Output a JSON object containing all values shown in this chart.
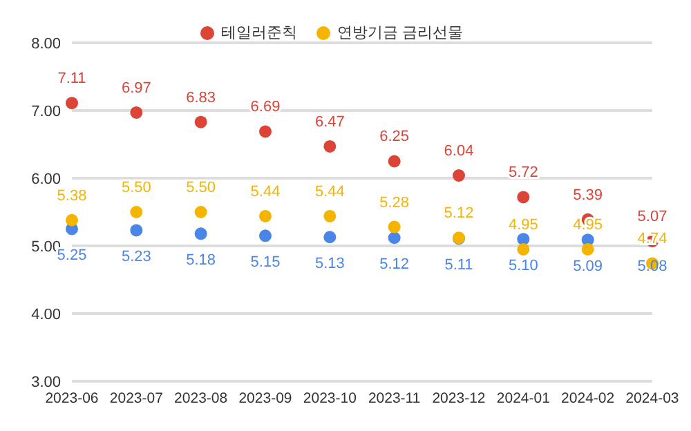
{
  "chart_data": {
    "type": "scatter",
    "categories": [
      "2023-06",
      "2023-07",
      "2023-08",
      "2023-09",
      "2023-10",
      "2023-11",
      "2023-12",
      "2024-01",
      "2024-02",
      "2024-03"
    ],
    "series": [
      {
        "color": "#4a86e8",
        "values": [
          5.25,
          5.23,
          5.18,
          5.15,
          5.13,
          5.12,
          5.11,
          5.1,
          5.09,
          null
        ],
        "value_labels": [
          "5.25",
          "5.23",
          "5.18",
          "5.15",
          "5.13",
          "5.12",
          "5.11",
          "5.10",
          "5.09",
          null
        ]
      },
      {
        "name": "테일러준칙",
        "color": "#db4437",
        "values": [
          7.11,
          6.97,
          6.83,
          6.69,
          6.47,
          6.25,
          6.04,
          5.72,
          5.39,
          5.07
        ],
        "value_labels": [
          "7.11",
          "6.97",
          "6.83",
          "6.69",
          "6.47",
          "6.25",
          "6.04",
          "5.72",
          "5.39",
          "5.07"
        ]
      },
      {
        "name": "연방기금 금리선물",
        "color": "#f4b400",
        "values": [
          5.38,
          5.5,
          5.5,
          5.44,
          5.44,
          5.28,
          5.12,
          4.95,
          4.95,
          4.74
        ],
        "value_labels": [
          "5.38",
          "5.50",
          "5.50",
          "5.44",
          "5.44",
          "5.28",
          "5.12",
          "4.95",
          "4.95",
          "4.74"
        ]
      }
    ],
    "ylim": [
      3,
      8
    ],
    "yticks": [
      {
        "value": 3,
        "label": "3.00"
      },
      {
        "value": 4,
        "label": "4.00"
      },
      {
        "value": 5,
        "label": "5.00"
      },
      {
        "value": 6,
        "label": "6.00"
      },
      {
        "value": 7,
        "label": "7.00"
      },
      {
        "value": 8,
        "label": "8.00"
      }
    ],
    "annotations": [
      {
        "text": "5.08",
        "x": "2024-03",
        "y": 5.08
      }
    ],
    "grid": "y",
    "legend": "top",
    "marker": "circle"
  }
}
